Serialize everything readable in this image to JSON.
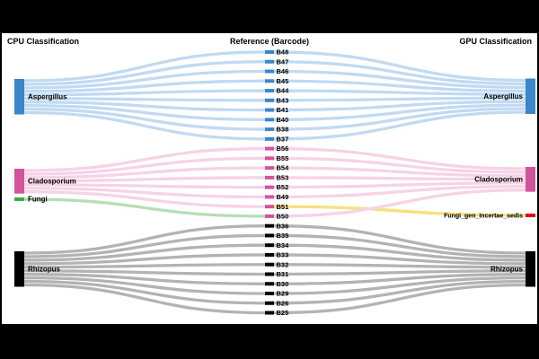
{
  "figure": {
    "background_color": "#000000",
    "plot_background_color": "#ffffff"
  },
  "headers": {
    "left": "CPU Classification",
    "middle": "Reference (Barcode)",
    "right": "GPU Classification"
  },
  "colors": {
    "blue_node": "#3b87c8",
    "pink_node": "#d1549d",
    "green_node": "#3cab47",
    "black_node": "#000000",
    "red_node": "#e8000f",
    "blue_flow": "#c1daf2",
    "pink_flow": "#f6d3e6",
    "green_flow": "#b5dfb3",
    "yellow_flow": "#f6e17d",
    "gray_flow": "#b3b3b3"
  },
  "left_nodes": [
    {
      "id": "aspergillus",
      "label": "Aspergillus",
      "color_key": "blue_node"
    },
    {
      "id": "cladosporium",
      "label": "Cladosporium",
      "color_key": "pink_node"
    },
    {
      "id": "fungi",
      "label": "Fungi",
      "color_key": "green_node"
    },
    {
      "id": "rhizopus",
      "label": "Rhizopus",
      "color_key": "black_node"
    }
  ],
  "right_nodes": [
    {
      "id": "aspergillus",
      "label": "Aspergillus",
      "color_key": "blue_node"
    },
    {
      "id": "cladosporium",
      "label": "Cladosporium",
      "color_key": "pink_node"
    },
    {
      "id": "fungi_gen_incertae_sedis",
      "label": "Fungi_gen_Incertae_sedis",
      "color_key": "red_node"
    },
    {
      "id": "rhizopus",
      "label": "Rhizopus",
      "color_key": "black_node"
    }
  ],
  "barcodes": [
    {
      "label": "B48",
      "color_key": "blue_node",
      "left": "aspergillus",
      "left_flow": "blue_flow",
      "right": "aspergillus",
      "right_flow": "blue_flow"
    },
    {
      "label": "B47",
      "color_key": "blue_node",
      "left": "aspergillus",
      "left_flow": "blue_flow",
      "right": "aspergillus",
      "right_flow": "blue_flow"
    },
    {
      "label": "B46",
      "color_key": "blue_node",
      "left": "aspergillus",
      "left_flow": "blue_flow",
      "right": "aspergillus",
      "right_flow": "blue_flow"
    },
    {
      "label": "B45",
      "color_key": "blue_node",
      "left": "aspergillus",
      "left_flow": "blue_flow",
      "right": "aspergillus",
      "right_flow": "blue_flow"
    },
    {
      "label": "B44",
      "color_key": "blue_node",
      "left": "aspergillus",
      "left_flow": "blue_flow",
      "right": "aspergillus",
      "right_flow": "blue_flow"
    },
    {
      "label": "B43",
      "color_key": "blue_node",
      "left": "aspergillus",
      "left_flow": "blue_flow",
      "right": "aspergillus",
      "right_flow": "blue_flow"
    },
    {
      "label": "B41",
      "color_key": "blue_node",
      "left": "aspergillus",
      "left_flow": "blue_flow",
      "right": "aspergillus",
      "right_flow": "blue_flow"
    },
    {
      "label": "B40",
      "color_key": "blue_node",
      "left": "aspergillus",
      "left_flow": "blue_flow",
      "right": "aspergillus",
      "right_flow": "blue_flow"
    },
    {
      "label": "B38",
      "color_key": "blue_node",
      "left": "aspergillus",
      "left_flow": "blue_flow",
      "right": "aspergillus",
      "right_flow": "blue_flow"
    },
    {
      "label": "B37",
      "color_key": "blue_node",
      "left": "aspergillus",
      "left_flow": "blue_flow",
      "right": "aspergillus",
      "right_flow": "blue_flow"
    },
    {
      "label": "B56",
      "color_key": "pink_node",
      "left": "cladosporium",
      "left_flow": "pink_flow",
      "right": "cladosporium",
      "right_flow": "pink_flow"
    },
    {
      "label": "B55",
      "color_key": "pink_node",
      "left": "cladosporium",
      "left_flow": "pink_flow",
      "right": "cladosporium",
      "right_flow": "pink_flow"
    },
    {
      "label": "B54",
      "color_key": "pink_node",
      "left": "cladosporium",
      "left_flow": "pink_flow",
      "right": "cladosporium",
      "right_flow": "pink_flow"
    },
    {
      "label": "B53",
      "color_key": "pink_node",
      "left": "cladosporium",
      "left_flow": "pink_flow",
      "right": "cladosporium",
      "right_flow": "pink_flow"
    },
    {
      "label": "B52",
      "color_key": "pink_node",
      "left": "cladosporium",
      "left_flow": "pink_flow",
      "right": "cladosporium",
      "right_flow": "pink_flow"
    },
    {
      "label": "B49",
      "color_key": "pink_node",
      "left": "cladosporium",
      "left_flow": "pink_flow",
      "right": "cladosporium",
      "right_flow": "pink_flow"
    },
    {
      "label": "B51",
      "color_key": "pink_node",
      "left": "cladosporium",
      "left_flow": "pink_flow",
      "right": "fungi_gen_incertae_sedis",
      "right_flow": "yellow_flow"
    },
    {
      "label": "B50",
      "color_key": "pink_node",
      "left": "fungi",
      "left_flow": "green_flow",
      "right": "cladosporium",
      "right_flow": "pink_flow"
    },
    {
      "label": "B36",
      "color_key": "black_node",
      "left": "rhizopus",
      "left_flow": "gray_flow",
      "right": "rhizopus",
      "right_flow": "gray_flow"
    },
    {
      "label": "B35",
      "color_key": "black_node",
      "left": "rhizopus",
      "left_flow": "gray_flow",
      "right": "rhizopus",
      "right_flow": "gray_flow"
    },
    {
      "label": "B34",
      "color_key": "black_node",
      "left": "rhizopus",
      "left_flow": "gray_flow",
      "right": "rhizopus",
      "right_flow": "gray_flow"
    },
    {
      "label": "B33",
      "color_key": "black_node",
      "left": "rhizopus",
      "left_flow": "gray_flow",
      "right": "rhizopus",
      "right_flow": "gray_flow"
    },
    {
      "label": "B32",
      "color_key": "black_node",
      "left": "rhizopus",
      "left_flow": "gray_flow",
      "right": "rhizopus",
      "right_flow": "gray_flow"
    },
    {
      "label": "B31",
      "color_key": "black_node",
      "left": "rhizopus",
      "left_flow": "gray_flow",
      "right": "rhizopus",
      "right_flow": "gray_flow"
    },
    {
      "label": "B30",
      "color_key": "black_node",
      "left": "rhizopus",
      "left_flow": "gray_flow",
      "right": "rhizopus",
      "right_flow": "gray_flow"
    },
    {
      "label": "B29",
      "color_key": "black_node",
      "left": "rhizopus",
      "left_flow": "gray_flow",
      "right": "rhizopus",
      "right_flow": "gray_flow"
    },
    {
      "label": "B26",
      "color_key": "black_node",
      "left": "rhizopus",
      "left_flow": "gray_flow",
      "right": "rhizopus",
      "right_flow": "gray_flow"
    },
    {
      "label": "B25",
      "color_key": "black_node",
      "left": "rhizopus",
      "left_flow": "gray_flow",
      "right": "rhizopus",
      "right_flow": "gray_flow"
    }
  ]
}
